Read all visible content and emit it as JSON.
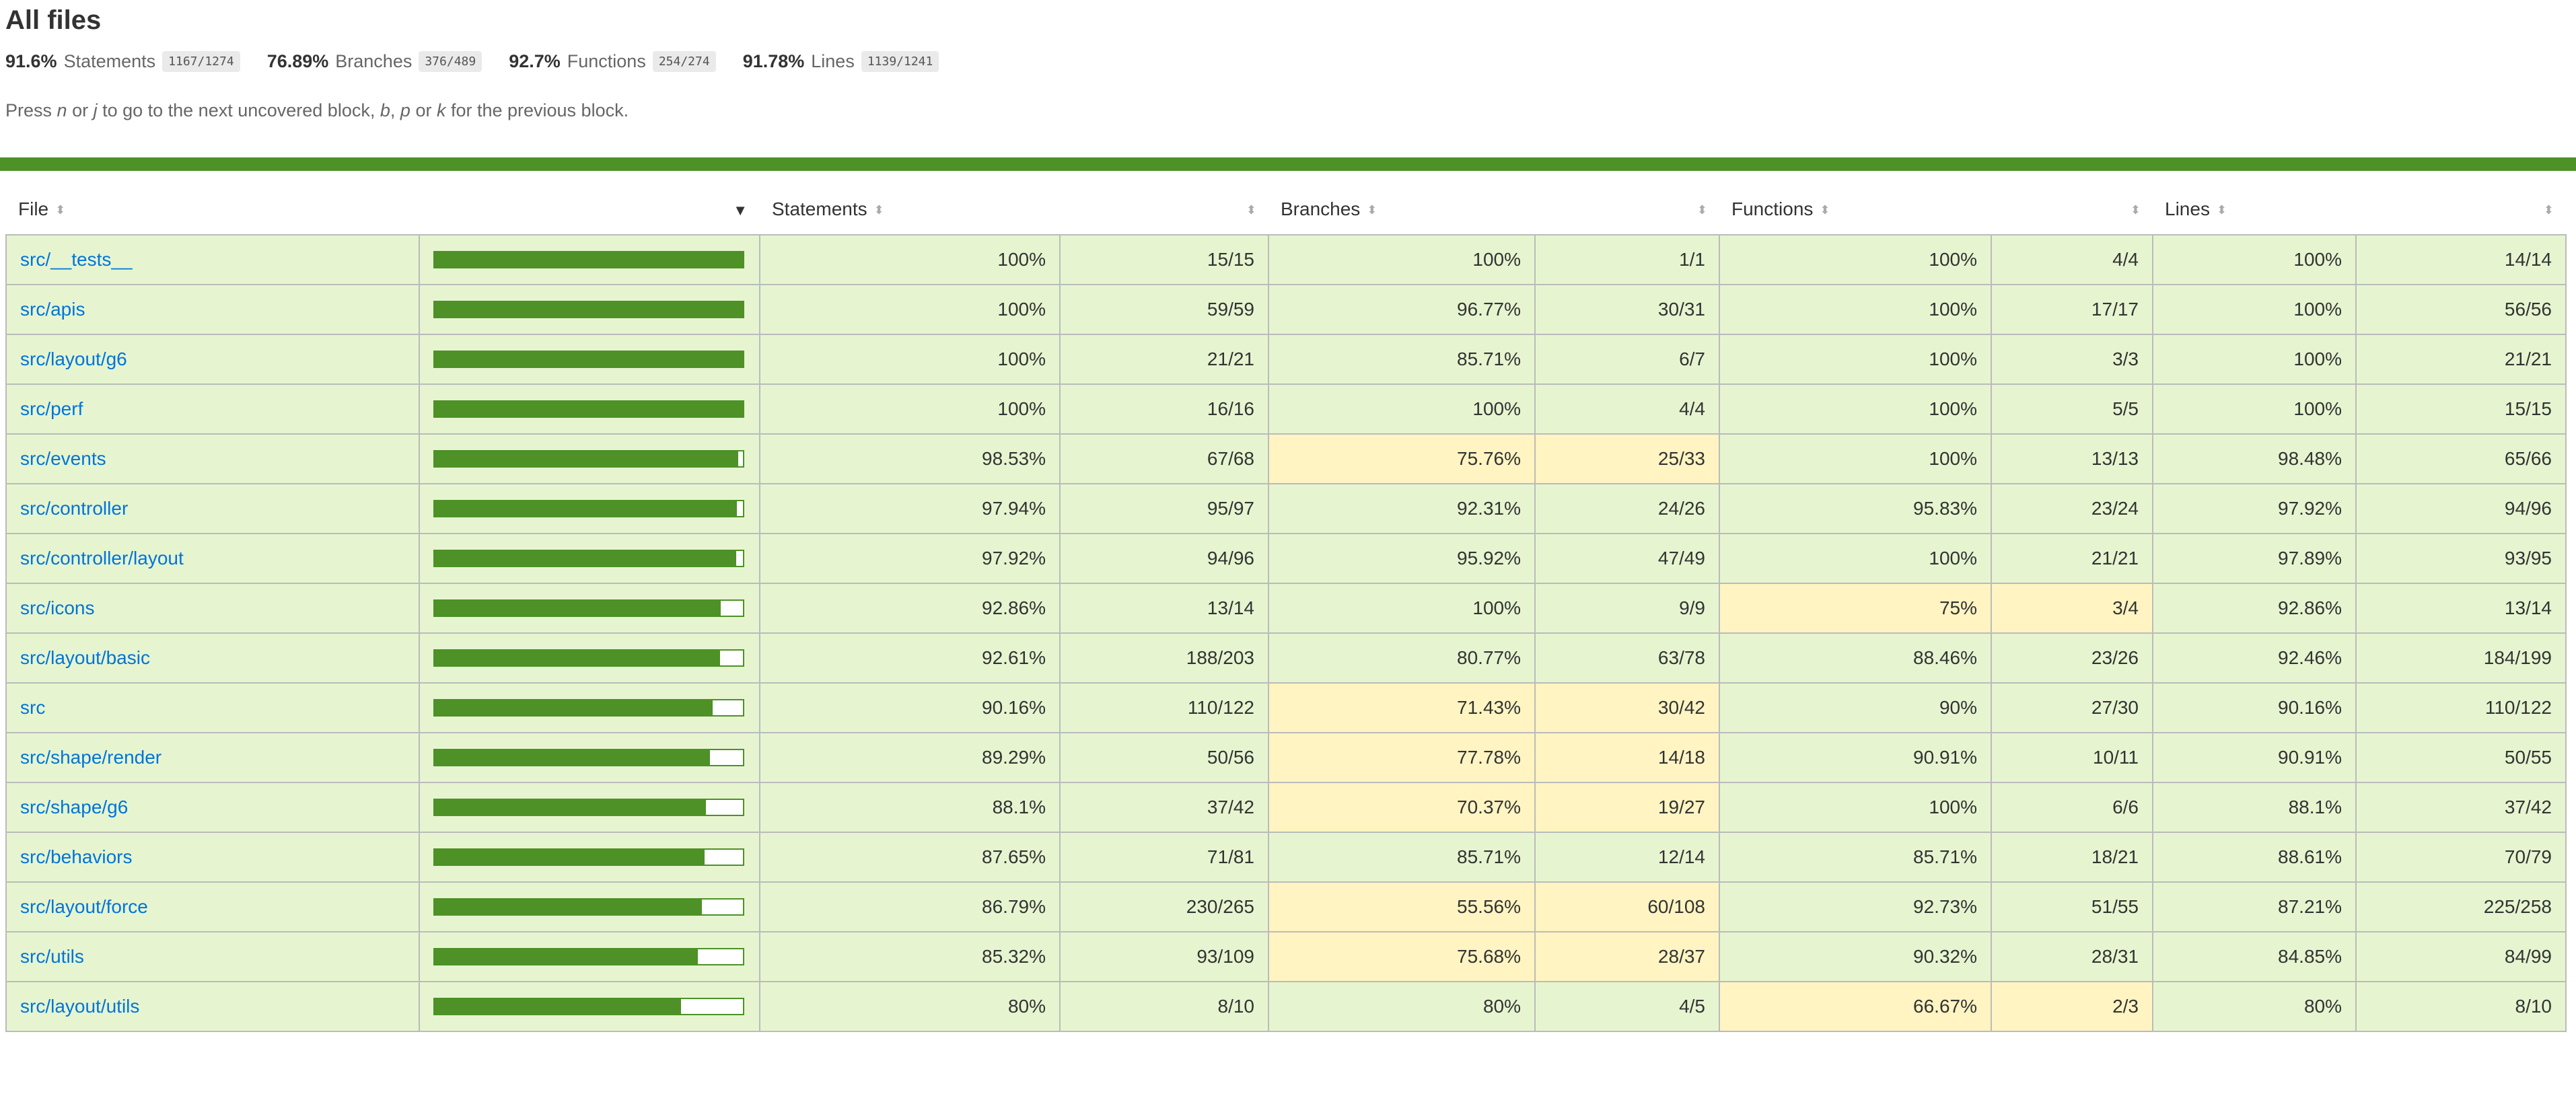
{
  "title": "All files",
  "summary": [
    {
      "pct": "91.6%",
      "label": "Statements",
      "fraction": "1167/1274"
    },
    {
      "pct": "76.89%",
      "label": "Branches",
      "fraction": "376/489"
    },
    {
      "pct": "92.7%",
      "label": "Functions",
      "fraction": "254/274"
    },
    {
      "pct": "91.78%",
      "label": "Lines",
      "fraction": "1139/1241"
    }
  ],
  "hint": {
    "p1": "Press ",
    "k1": "n",
    "p2": " or ",
    "k2": "j",
    "p3": " to go to the next uncovered block, ",
    "k3": "b",
    "p4": ", ",
    "k4": "p",
    "p5": " or ",
    "k5": "k",
    "p6": " for the previous block."
  },
  "colors": {
    "high": "#e6f5d0",
    "medium": "#fff4c2",
    "bar": "#4d9127",
    "link": "#0074d9"
  },
  "table": {
    "headers": {
      "file": "File",
      "statements": "Statements",
      "branches": "Branches",
      "functions": "Functions",
      "lines": "Lines"
    },
    "rows": [
      {
        "file": "src/__tests__",
        "coverage": 1.0,
        "s_pct": "100%",
        "s_frac": "15/15",
        "b_pct": "100%",
        "b_frac": "1/1",
        "f_pct": "100%",
        "f_frac": "4/4",
        "l_pct": "100%",
        "l_frac": "14/14",
        "s_cls": "high",
        "b_cls": "high",
        "f_cls": "high",
        "l_cls": "high"
      },
      {
        "file": "src/apis",
        "coverage": 1.0,
        "s_pct": "100%",
        "s_frac": "59/59",
        "b_pct": "96.77%",
        "b_frac": "30/31",
        "f_pct": "100%",
        "f_frac": "17/17",
        "l_pct": "100%",
        "l_frac": "56/56",
        "s_cls": "high",
        "b_cls": "high",
        "f_cls": "high",
        "l_cls": "high"
      },
      {
        "file": "src/layout/g6",
        "coverage": 1.0,
        "s_pct": "100%",
        "s_frac": "21/21",
        "b_pct": "85.71%",
        "b_frac": "6/7",
        "f_pct": "100%",
        "f_frac": "3/3",
        "l_pct": "100%",
        "l_frac": "21/21",
        "s_cls": "high",
        "b_cls": "high",
        "f_cls": "high",
        "l_cls": "high"
      },
      {
        "file": "src/perf",
        "coverage": 1.0,
        "s_pct": "100%",
        "s_frac": "16/16",
        "b_pct": "100%",
        "b_frac": "4/4",
        "f_pct": "100%",
        "f_frac": "5/5",
        "l_pct": "100%",
        "l_frac": "15/15",
        "s_cls": "high",
        "b_cls": "high",
        "f_cls": "high",
        "l_cls": "high"
      },
      {
        "file": "src/events",
        "coverage": 0.9853,
        "s_pct": "98.53%",
        "s_frac": "67/68",
        "b_pct": "75.76%",
        "b_frac": "25/33",
        "f_pct": "100%",
        "f_frac": "13/13",
        "l_pct": "98.48%",
        "l_frac": "65/66",
        "s_cls": "high",
        "b_cls": "medium",
        "f_cls": "high",
        "l_cls": "high"
      },
      {
        "file": "src/controller",
        "coverage": 0.9794,
        "s_pct": "97.94%",
        "s_frac": "95/97",
        "b_pct": "92.31%",
        "b_frac": "24/26",
        "f_pct": "95.83%",
        "f_frac": "23/24",
        "l_pct": "97.92%",
        "l_frac": "94/96",
        "s_cls": "high",
        "b_cls": "high",
        "f_cls": "high",
        "l_cls": "high"
      },
      {
        "file": "src/controller/layout",
        "coverage": 0.9792,
        "s_pct": "97.92%",
        "s_frac": "94/96",
        "b_pct": "95.92%",
        "b_frac": "47/49",
        "f_pct": "100%",
        "f_frac": "21/21",
        "l_pct": "97.89%",
        "l_frac": "93/95",
        "s_cls": "high",
        "b_cls": "high",
        "f_cls": "high",
        "l_cls": "high"
      },
      {
        "file": "src/icons",
        "coverage": 0.9286,
        "s_pct": "92.86%",
        "s_frac": "13/14",
        "b_pct": "100%",
        "b_frac": "9/9",
        "f_pct": "75%",
        "f_frac": "3/4",
        "l_pct": "92.86%",
        "l_frac": "13/14",
        "s_cls": "high",
        "b_cls": "high",
        "f_cls": "medium",
        "l_cls": "high"
      },
      {
        "file": "src/layout/basic",
        "coverage": 0.9261,
        "s_pct": "92.61%",
        "s_frac": "188/203",
        "b_pct": "80.77%",
        "b_frac": "63/78",
        "f_pct": "88.46%",
        "f_frac": "23/26",
        "l_pct": "92.46%",
        "l_frac": "184/199",
        "s_cls": "high",
        "b_cls": "high",
        "f_cls": "high",
        "l_cls": "high"
      },
      {
        "file": "src",
        "coverage": 0.9016,
        "s_pct": "90.16%",
        "s_frac": "110/122",
        "b_pct": "71.43%",
        "b_frac": "30/42",
        "f_pct": "90%",
        "f_frac": "27/30",
        "l_pct": "90.16%",
        "l_frac": "110/122",
        "s_cls": "high",
        "b_cls": "medium",
        "f_cls": "high",
        "l_cls": "high"
      },
      {
        "file": "src/shape/render",
        "coverage": 0.8929,
        "s_pct": "89.29%",
        "s_frac": "50/56",
        "b_pct": "77.78%",
        "b_frac": "14/18",
        "f_pct": "90.91%",
        "f_frac": "10/11",
        "l_pct": "90.91%",
        "l_frac": "50/55",
        "s_cls": "high",
        "b_cls": "medium",
        "f_cls": "high",
        "l_cls": "high"
      },
      {
        "file": "src/shape/g6",
        "coverage": 0.881,
        "s_pct": "88.1%",
        "s_frac": "37/42",
        "b_pct": "70.37%",
        "b_frac": "19/27",
        "f_pct": "100%",
        "f_frac": "6/6",
        "l_pct": "88.1%",
        "l_frac": "37/42",
        "s_cls": "high",
        "b_cls": "medium",
        "f_cls": "high",
        "l_cls": "high"
      },
      {
        "file": "src/behaviors",
        "coverage": 0.8765,
        "s_pct": "87.65%",
        "s_frac": "71/81",
        "b_pct": "85.71%",
        "b_frac": "12/14",
        "f_pct": "85.71%",
        "f_frac": "18/21",
        "l_pct": "88.61%",
        "l_frac": "70/79",
        "s_cls": "high",
        "b_cls": "high",
        "f_cls": "high",
        "l_cls": "high"
      },
      {
        "file": "src/layout/force",
        "coverage": 0.8679,
        "s_pct": "86.79%",
        "s_frac": "230/265",
        "b_pct": "55.56%",
        "b_frac": "60/108",
        "f_pct": "92.73%",
        "f_frac": "51/55",
        "l_pct": "87.21%",
        "l_frac": "225/258",
        "s_cls": "high",
        "b_cls": "medium",
        "f_cls": "high",
        "l_cls": "high"
      },
      {
        "file": "src/utils",
        "coverage": 0.8532,
        "s_pct": "85.32%",
        "s_frac": "93/109",
        "b_pct": "75.68%",
        "b_frac": "28/37",
        "f_pct": "90.32%",
        "f_frac": "28/31",
        "l_pct": "84.85%",
        "l_frac": "84/99",
        "s_cls": "high",
        "b_cls": "medium",
        "f_cls": "high",
        "l_cls": "high"
      },
      {
        "file": "src/layout/utils",
        "coverage": 0.8,
        "s_pct": "80%",
        "s_frac": "8/10",
        "b_pct": "80%",
        "b_frac": "4/5",
        "f_pct": "66.67%",
        "f_frac": "2/3",
        "l_pct": "80%",
        "l_frac": "8/10",
        "s_cls": "high",
        "b_cls": "high",
        "f_cls": "medium",
        "l_cls": "high"
      }
    ]
  }
}
